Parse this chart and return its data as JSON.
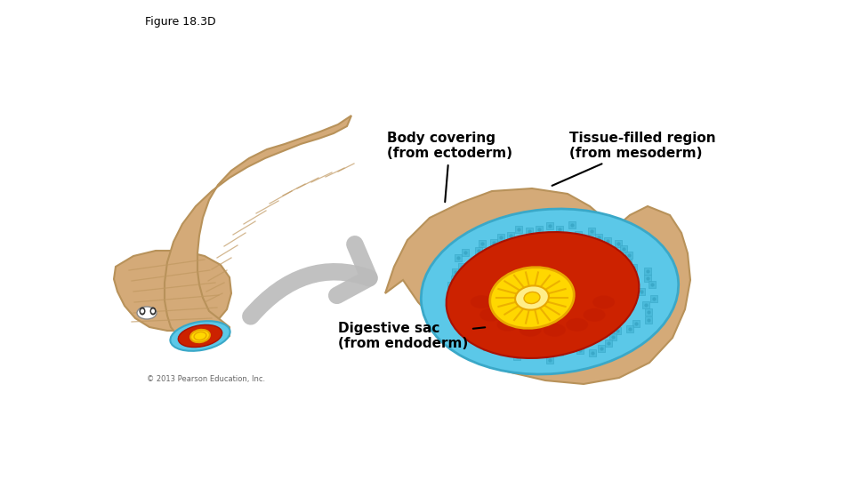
{
  "title": "Figure 18.3D",
  "title_fontsize": 9,
  "background_color": "#ffffff",
  "labels": {
    "body_covering": "Body covering\n(from ectoderm)",
    "tissue_filled": "Tissue-filled region\n(from mesoderm)",
    "digestive_sac": "Digestive sac\n(from endoderm)",
    "copyright": "© 2013 Pearson Education, Inc."
  },
  "colors": {
    "tan": "#D4AA78",
    "tan_dark": "#B8925A",
    "tan_light": "#E8C898",
    "blue": "#5BC8E8",
    "blue_dark": "#3AA8C8",
    "blue_cell": "#48B8D8",
    "red": "#CC2200",
    "red_dark": "#AA1100",
    "yellow": "#FFD700",
    "yellow_dark": "#E8A800",
    "yellow_light": "#FFEE88",
    "arrow_gray": "#BBBBBB",
    "arrow_gray_dark": "#999999",
    "white": "#FFFFFF",
    "black": "#000000",
    "seg_line": "#C09860"
  }
}
